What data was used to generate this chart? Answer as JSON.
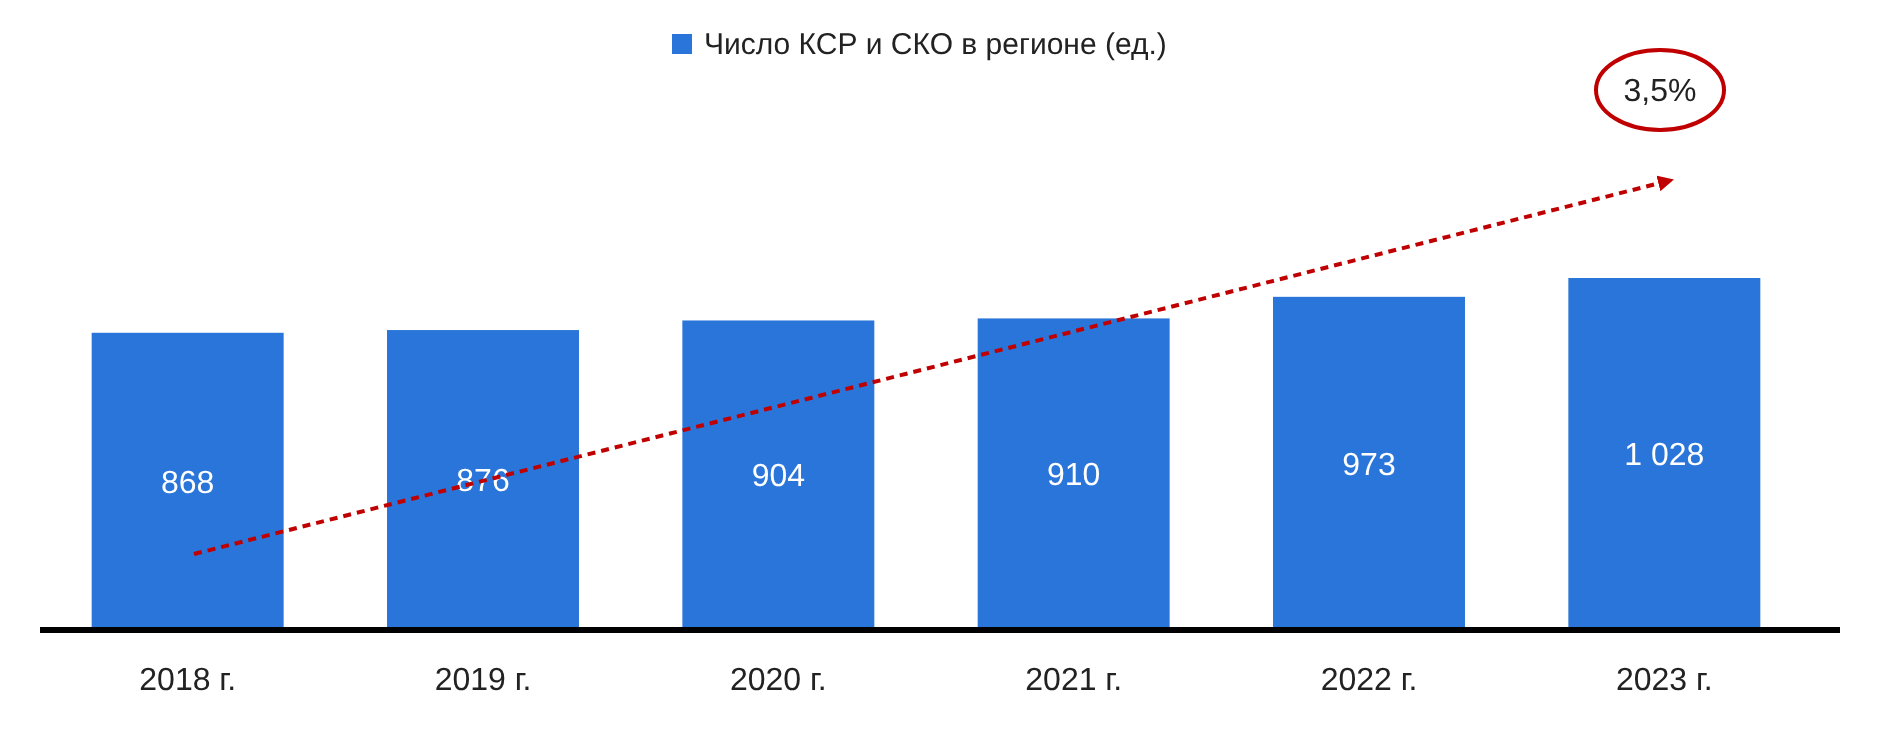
{
  "chart_data": {
    "type": "bar",
    "categories": [
      "2018 г.",
      "2019 г.",
      "2020 г.",
      "2021 г.",
      "2022 г.",
      "2023 г."
    ],
    "series": [
      {
        "name": "Число КСР и СКО в регионе (ед.)",
        "color": "#2a75d9",
        "values": [
          868,
          876,
          904,
          910,
          973,
          1028
        ],
        "value_labels": [
          "868",
          "876",
          "904",
          "910",
          "973",
          "1 028"
        ]
      }
    ],
    "legend": "top",
    "grid": false,
    "annotations": [
      "3,5%"
    ]
  }
}
